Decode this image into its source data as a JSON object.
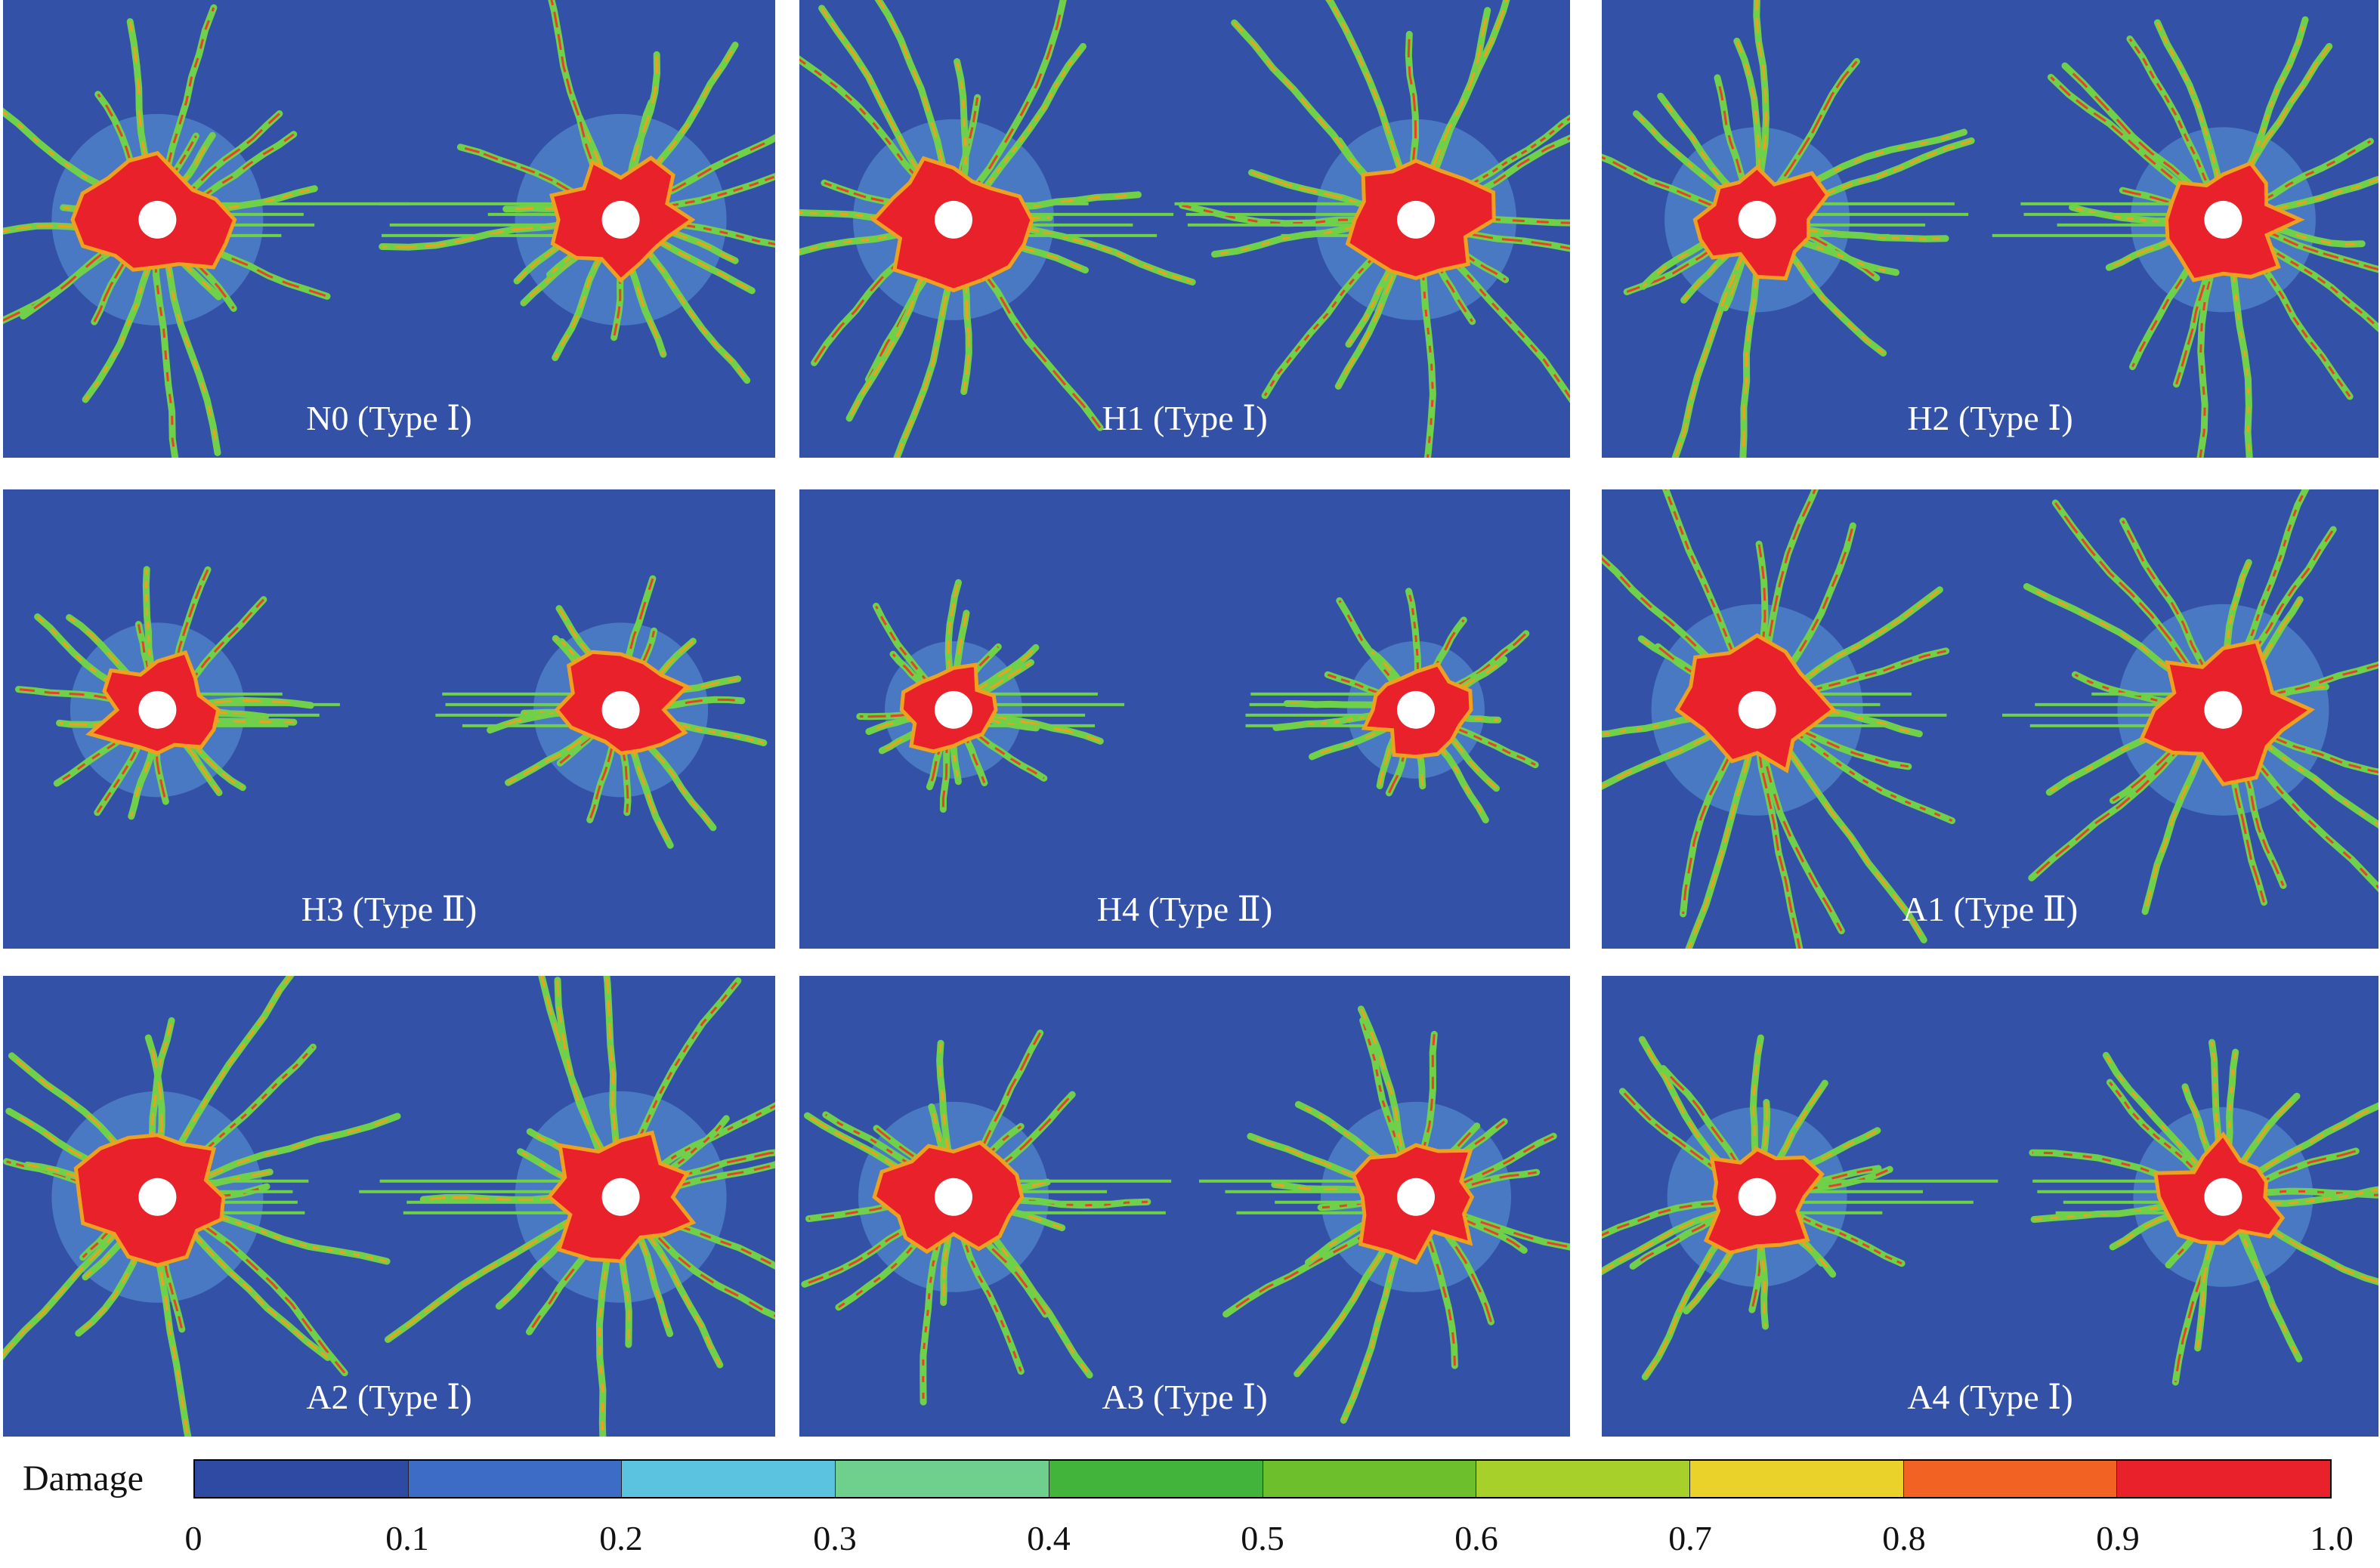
{
  "panels": [
    {
      "label": "N0 (Type Ⅰ)",
      "spread": 1.0,
      "vertical": 0.6,
      "core": 1.0
    },
    {
      "label": "H1 (Type Ⅰ)",
      "spread": 1.0,
      "vertical": 0.7,
      "core": 0.9
    },
    {
      "label": "H2 (Type Ⅰ)",
      "spread": 0.9,
      "vertical": 0.6,
      "core": 0.75
    },
    {
      "label": "H3 (Type Ⅱ)",
      "spread": 0.5,
      "vertical": 0.4,
      "core": 0.65
    },
    {
      "label": "H4 (Type Ⅱ)",
      "spread": 0.45,
      "vertical": 0.35,
      "core": 0.3
    },
    {
      "label": "A1 (Type Ⅱ)",
      "spread": 0.8,
      "vertical": 1.0,
      "core": 1.0
    },
    {
      "label": "A2 (Type Ⅰ)",
      "spread": 1.0,
      "vertical": 0.8,
      "core": 1.0
    },
    {
      "label": "A3 (Type Ⅰ)",
      "spread": 0.85,
      "vertical": 0.55,
      "core": 0.8
    },
    {
      "label": "A4 (Type Ⅰ)",
      "spread": 0.8,
      "vertical": 0.5,
      "core": 0.7
    }
  ],
  "colorbar": {
    "title": "Damage",
    "colors": [
      "#2e4aa3",
      "#3d6cc6",
      "#5bc2e0",
      "#6fcf8c",
      "#43b43b",
      "#6dbf2c",
      "#a7d12a",
      "#ebd22a",
      "#f26223",
      "#e8212a"
    ],
    "ticks": [
      "0",
      "0.1",
      "0.2",
      "0.3",
      "0.4",
      "0.5",
      "0.6",
      "0.7",
      "0.8",
      "0.9",
      "1.0"
    ]
  }
}
